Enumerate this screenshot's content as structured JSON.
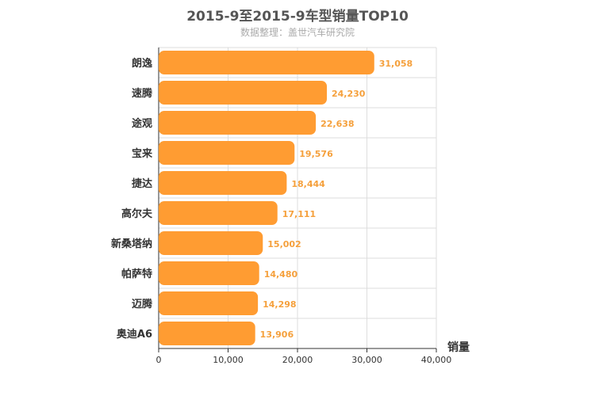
{
  "chart_data": {
    "type": "bar",
    "orientation": "horizontal",
    "title": "2015-9至2015-9车型销量TOP10",
    "subtitle": "数据整理：盖世汽车研究院",
    "xlabel": "销量",
    "categories": [
      "朗逸",
      "速腾",
      "途观",
      "宝来",
      "捷达",
      "高尔夫",
      "新桑塔纳",
      "帕萨特",
      "迈腾",
      "奥迪A6"
    ],
    "values": [
      31058,
      24230,
      22638,
      19576,
      18444,
      17111,
      15002,
      14480,
      14298,
      13906
    ],
    "value_labels": [
      "31,058",
      "24,230",
      "22,638",
      "19,576",
      "18,444",
      "17,111",
      "15,002",
      "14,480",
      "14,298",
      "13,906"
    ],
    "xlim": [
      0,
      40000
    ],
    "xticks": [
      "0",
      "10,000",
      "20,000",
      "30,000",
      "40,000"
    ],
    "grid": true,
    "bar_color": "#ff9c32",
    "value_label_color": "#f5a03c"
  }
}
